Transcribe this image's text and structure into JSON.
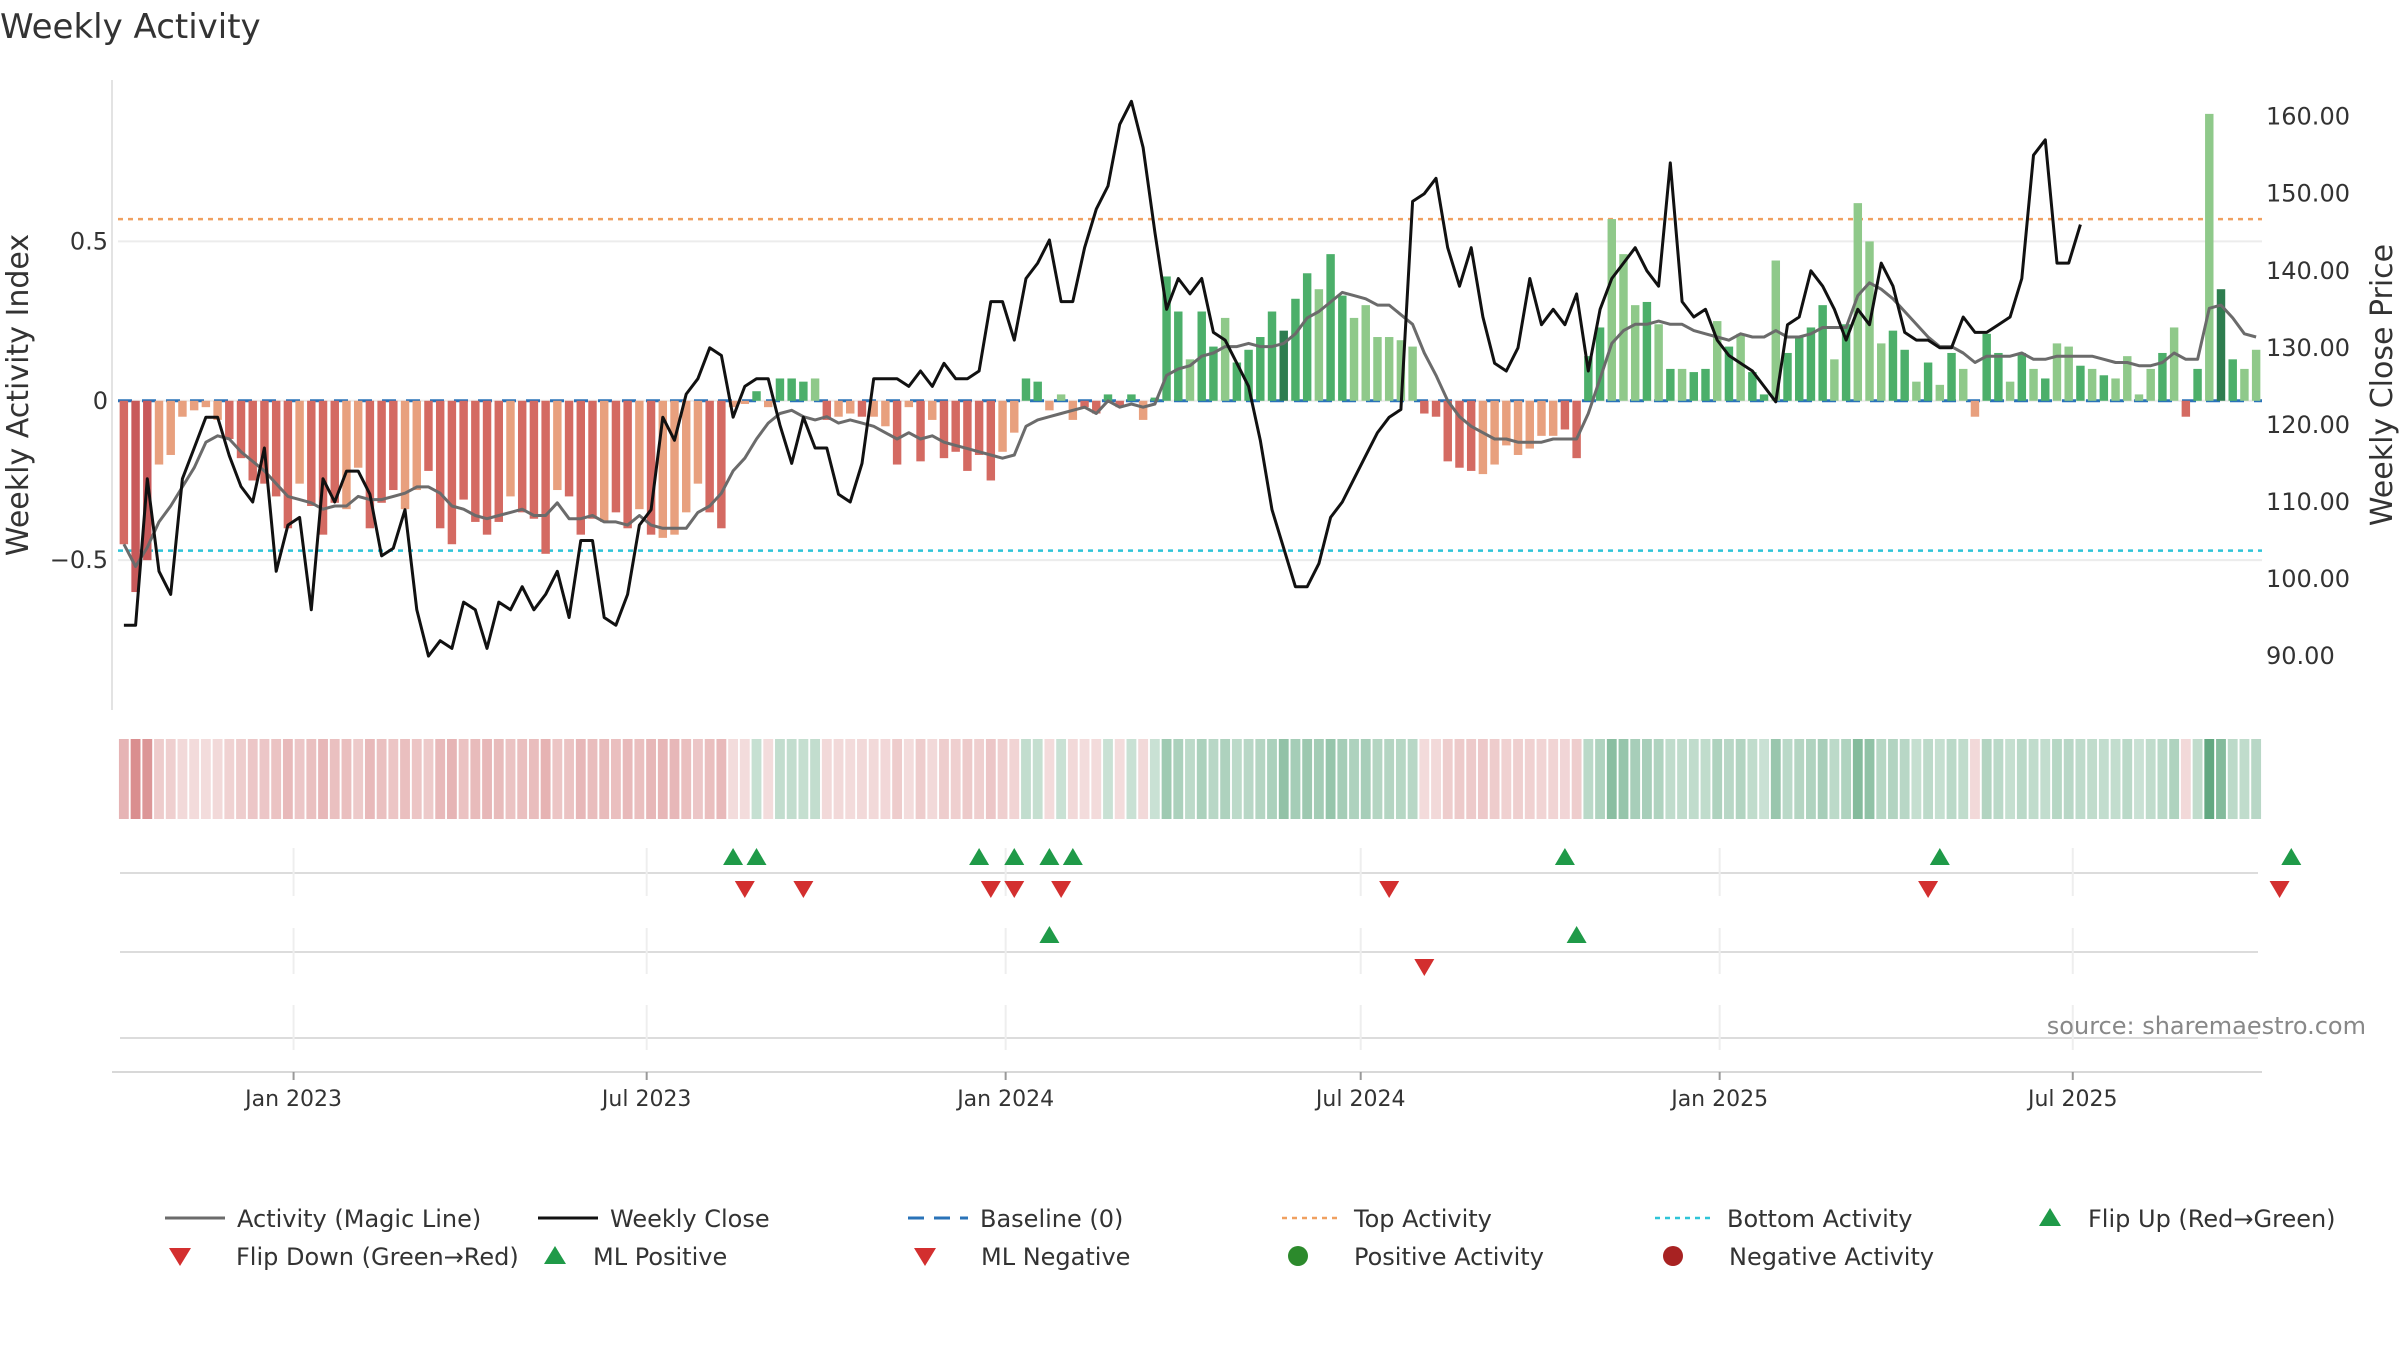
{
  "title": "Weekly Activity",
  "source": "source: sharemaestro.com",
  "chart_data": {
    "type": "bar",
    "title": "Weekly Activity",
    "start_date": "2022-10-03",
    "end_date": "2025-10-06",
    "ylabel_left": "Weekly Activity Index",
    "ylabel_right": "Weekly Close Price",
    "ylim_left": [
      -0.97,
      1.0
    ],
    "ylim_right": [
      83.0,
      164.5
    ],
    "left_ticks": [
      {
        "v": 0.5,
        "label": "0.5"
      },
      {
        "v": 0,
        "label": "0"
      },
      {
        "v": -0.5,
        "label": "−0.5"
      }
    ],
    "right_ticks": [
      {
        "v": 160,
        "label": "160.00"
      },
      {
        "v": 150,
        "label": "150.00"
      },
      {
        "v": 140,
        "label": "140.00"
      },
      {
        "v": 130,
        "label": "130.00"
      },
      {
        "v": 120,
        "label": "120.00"
      },
      {
        "v": 110,
        "label": "110.00"
      },
      {
        "v": 100,
        "label": "100.00"
      },
      {
        "v": 90,
        "label": "90.00"
      }
    ],
    "x_ticks": [
      {
        "date": "2023-01-01",
        "label": "Jan 2023"
      },
      {
        "date": "2023-07-01",
        "label": "Jul 2023"
      },
      {
        "date": "2024-01-01",
        "label": "Jan 2024"
      },
      {
        "date": "2024-07-01",
        "label": "Jul 2024"
      },
      {
        "date": "2025-01-01",
        "label": "Jan 2025"
      },
      {
        "date": "2025-07-01",
        "label": "Jul 2025"
      }
    ],
    "top_activity": 0.57,
    "bottom_activity": -0.47,
    "baseline": 0,
    "activity": [
      -0.45,
      -0.6,
      -0.5,
      -0.2,
      -0.17,
      -0.05,
      -0.03,
      -0.02,
      -0.06,
      -0.12,
      -0.18,
      -0.25,
      -0.26,
      -0.3,
      -0.4,
      -0.26,
      -0.33,
      -0.42,
      -0.32,
      -0.34,
      -0.21,
      -0.4,
      -0.32,
      -0.28,
      -0.34,
      -0.28,
      -0.22,
      -0.4,
      -0.45,
      -0.31,
      -0.38,
      -0.42,
      -0.38,
      -0.3,
      -0.35,
      -0.37,
      -0.48,
      -0.28,
      -0.3,
      -0.42,
      -0.37,
      -0.38,
      -0.35,
      -0.4,
      -0.34,
      -0.42,
      -0.43,
      -0.42,
      -0.35,
      -0.26,
      -0.35,
      -0.4,
      -0.02,
      -0.01,
      0.03,
      -0.02,
      0.07,
      0.07,
      0.06,
      0.07,
      -0.06,
      -0.05,
      -0.04,
      -0.05,
      -0.05,
      -0.08,
      -0.2,
      -0.02,
      -0.19,
      -0.06,
      -0.18,
      -0.16,
      -0.22,
      -0.17,
      -0.25,
      -0.16,
      -0.1,
      0.07,
      0.06,
      -0.03,
      0.02,
      -0.06,
      -0.02,
      -0.04,
      0.02,
      -0.02,
      0.02,
      -0.06,
      0.01,
      0.39,
      0.28,
      0.13,
      0.28,
      0.17,
      0.26,
      0.12,
      0.16,
      0.2,
      0.28,
      0.22,
      0.32,
      0.4,
      0.35,
      0.46,
      0.33,
      0.26,
      0.3,
      0.2,
      0.2,
      0.19,
      0.17,
      -0.04,
      -0.05,
      -0.19,
      -0.21,
      -0.22,
      -0.23,
      -0.2,
      -0.14,
      -0.17,
      -0.15,
      -0.11,
      -0.11,
      -0.09,
      -0.18,
      0.14,
      0.23,
      0.57,
      0.46,
      0.3,
      0.31,
      0.24,
      0.1,
      0.1,
      0.09,
      0.1,
      0.25,
      0.17,
      0.21,
      0.09,
      0.02,
      0.44,
      0.15,
      0.2,
      0.23,
      0.3,
      0.13,
      0.24,
      0.62,
      0.5,
      0.18,
      0.22,
      0.16,
      0.06,
      0.12,
      0.05,
      0.15,
      0.1,
      -0.05,
      0.21,
      0.15,
      0.06,
      0.15,
      0.1,
      0.07,
      0.18,
      0.17,
      0.11,
      0.1,
      0.08,
      0.07,
      0.14,
      0.02,
      0.1,
      0.15,
      0.23,
      -0.05,
      0.1,
      0.9,
      0.35,
      0.13,
      0.1,
      0.16
    ],
    "activity_shades": [
      1,
      0,
      0,
      2,
      2,
      2,
      2,
      2,
      2,
      1,
      1,
      1,
      1,
      1,
      1,
      2,
      1,
      1,
      1,
      2,
      2,
      1,
      1,
      1,
      2,
      2,
      1,
      1,
      1,
      1,
      1,
      1,
      1,
      2,
      1,
      1,
      1,
      2,
      1,
      1,
      1,
      2,
      1,
      1,
      2,
      1,
      2,
      2,
      2,
      2,
      1,
      1,
      2,
      2,
      1,
      2,
      1,
      1,
      1,
      2,
      1,
      2,
      2,
      1,
      2,
      2,
      1,
      2,
      1,
      2,
      1,
      1,
      1,
      1,
      1,
      2,
      2,
      1,
      1,
      2,
      2,
      2,
      1,
      1,
      1,
      1,
      1,
      2,
      1,
      1,
      1,
      2,
      1,
      1,
      2,
      1,
      1,
      1,
      1,
      0,
      1,
      1,
      2,
      1,
      1,
      2,
      2,
      2,
      2,
      2,
      2,
      1,
      1,
      1,
      1,
      1,
      2,
      2,
      2,
      2,
      2,
      2,
      2,
      1,
      1,
      1,
      1,
      2,
      2,
      2,
      1,
      2,
      1,
      2,
      1,
      1,
      2,
      1,
      2,
      1,
      1,
      2,
      1,
      1,
      1,
      1,
      2,
      1,
      2,
      2,
      2,
      1,
      1,
      2,
      1,
      2,
      1,
      2,
      2,
      1,
      1,
      2,
      1,
      2,
      1,
      2,
      2,
      1,
      2,
      1,
      2,
      2,
      2,
      2,
      1,
      2,
      1,
      1,
      2,
      0,
      1,
      2,
      2,
      1,
      1
    ],
    "magic_line": [
      -0.45,
      -0.52,
      -0.46,
      -0.38,
      -0.33,
      -0.27,
      -0.21,
      -0.13,
      -0.11,
      -0.12,
      -0.16,
      -0.19,
      -0.22,
      -0.26,
      -0.3,
      -0.31,
      -0.32,
      -0.34,
      -0.33,
      -0.33,
      -0.3,
      -0.31,
      -0.31,
      -0.3,
      -0.29,
      -0.27,
      -0.27,
      -0.29,
      -0.33,
      -0.34,
      -0.36,
      -0.37,
      -0.36,
      -0.35,
      -0.34,
      -0.36,
      -0.36,
      -0.32,
      -0.37,
      -0.37,
      -0.36,
      -0.38,
      -0.38,
      -0.39,
      -0.36,
      -0.39,
      -0.4,
      -0.4,
      -0.4,
      -0.35,
      -0.33,
      -0.29,
      -0.22,
      -0.18,
      -0.12,
      -0.07,
      -0.04,
      -0.03,
      -0.05,
      -0.06,
      -0.05,
      -0.07,
      -0.06,
      -0.07,
      -0.08,
      -0.1,
      -0.12,
      -0.1,
      -0.12,
      -0.11,
      -0.13,
      -0.14,
      -0.15,
      -0.16,
      -0.17,
      -0.18,
      -0.17,
      -0.08,
      -0.06,
      -0.05,
      -0.04,
      -0.03,
      -0.02,
      -0.04,
      0.0,
      -0.02,
      -0.01,
      -0.02,
      -0.01,
      0.08,
      0.1,
      0.11,
      0.14,
      0.15,
      0.17,
      0.17,
      0.18,
      0.17,
      0.17,
      0.18,
      0.21,
      0.26,
      0.28,
      0.31,
      0.34,
      0.33,
      0.32,
      0.3,
      0.3,
      0.27,
      0.24,
      0.15,
      0.08,
      0.0,
      -0.05,
      -0.08,
      -0.1,
      -0.12,
      -0.12,
      -0.13,
      -0.13,
      -0.13,
      -0.12,
      -0.12,
      -0.12,
      -0.04,
      0.07,
      0.18,
      0.22,
      0.24,
      0.24,
      0.25,
      0.24,
      0.24,
      0.22,
      0.21,
      0.2,
      0.19,
      0.21,
      0.2,
      0.2,
      0.22,
      0.2,
      0.2,
      0.21,
      0.23,
      0.23,
      0.23,
      0.33,
      0.37,
      0.35,
      0.32,
      0.28,
      0.24,
      0.2,
      0.17,
      0.17,
      0.15,
      0.12,
      0.14,
      0.14,
      0.14,
      0.15,
      0.13,
      0.13,
      0.14,
      0.14,
      0.14,
      0.14,
      0.13,
      0.12,
      0.12,
      0.11,
      0.11,
      0.12,
      0.15,
      0.13,
      0.13,
      0.29,
      0.3,
      0.26,
      0.21,
      0.2
    ],
    "weekly_close": [
      94,
      94,
      113,
      101,
      98,
      113,
      117,
      121,
      121,
      116,
      112,
      110,
      117,
      101,
      107,
      108,
      96,
      113,
      110,
      114,
      114,
      111,
      103,
      104,
      109,
      96,
      90,
      92,
      91,
      97,
      96,
      91,
      97,
      96,
      99,
      96,
      98,
      101,
      95,
      105,
      105,
      95,
      94,
      98,
      107,
      109,
      121,
      118,
      124,
      126,
      130,
      129,
      121,
      125,
      126,
      126,
      120,
      115,
      121,
      117,
      117,
      111,
      110,
      115,
      126,
      126,
      126,
      125,
      127,
      125,
      128,
      126,
      126,
      127,
      136,
      136,
      131,
      139,
      141,
      144,
      136,
      136,
      143,
      148,
      151,
      159,
      162,
      156,
      145,
      135,
      139,
      137,
      139,
      132,
      131,
      128,
      125,
      118,
      109,
      104,
      99,
      99,
      102,
      108,
      110,
      113,
      116,
      119,
      121,
      122,
      149,
      150,
      152,
      143,
      138,
      143,
      134,
      128,
      127,
      130,
      139,
      133,
      135,
      133,
      137,
      127,
      135,
      139,
      141,
      143,
      140,
      138,
      154,
      136,
      134,
      135,
      131,
      129,
      128,
      127,
      125,
      123,
      133,
      134,
      140,
      138,
      135,
      131,
      135,
      133,
      141,
      138,
      132,
      131,
      131,
      130,
      130,
      134,
      132,
      132,
      133,
      134,
      139,
      155,
      157,
      141,
      141,
      146
    ]
  },
  "mini_strips": {
    "flip_up_weeks": [
      52,
      54,
      73,
      76,
      79,
      81,
      123,
      155,
      185
    ],
    "flip_down_weeks": [
      53,
      58,
      74,
      76,
      80,
      108,
      154,
      184
    ],
    "ml_positive_weeks": [
      79,
      124
    ],
    "ml_negative_weeks": [
      111
    ]
  },
  "legend": [
    {
      "key": "magic_line",
      "label": "Activity (Magic Line)"
    },
    {
      "key": "weekly_close",
      "label": "Weekly Close"
    },
    {
      "key": "baseline",
      "label": "Baseline (0)"
    },
    {
      "key": "top_activity",
      "label": "Top Activity"
    },
    {
      "key": "bottom_activity",
      "label": "Bottom Activity"
    },
    {
      "key": "flip_up",
      "label": "Flip Up (Red→Green)"
    },
    {
      "key": "flip_down",
      "label": "Flip Down (Green→Red)"
    },
    {
      "key": "ml_positive",
      "label": "ML Positive"
    },
    {
      "key": "ml_negative",
      "label": "ML Negative"
    },
    {
      "key": "positive_activity",
      "label": "Positive Activity"
    },
    {
      "key": "negative_activity",
      "label": "Negative Activity"
    }
  ],
  "colors": {
    "pos_strong": "#2e7d4f",
    "pos_mid": "#4caf6a",
    "pos_light": "#8fc98a",
    "neg_strong": "#c8595a",
    "neg_mid": "#d46a62",
    "neg_light": "#e8a07e",
    "magic_line": "#6b6b6b",
    "weekly_close": "#111111",
    "baseline": "#2a73b8",
    "top_activity": "#f0a060",
    "bottom_activity": "#2ec4d8",
    "flip_up": "#1f9a48",
    "flip_down": "#d32f2f",
    "positive_dot": "#2c8a2c",
    "negative_dot": "#a82222",
    "heat_pos": "#2e8b57",
    "heat_neg": "#c8595a"
  }
}
